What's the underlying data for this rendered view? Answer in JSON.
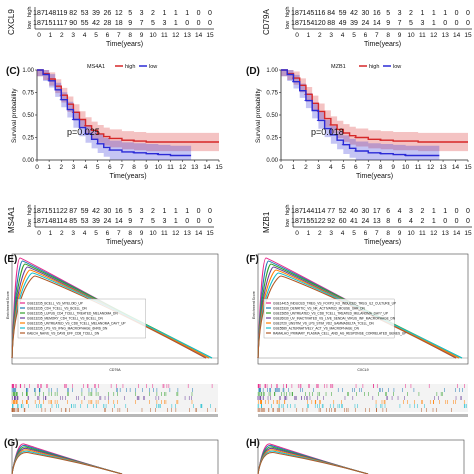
{
  "risk_tables": [
    {
      "gene": "CXCL9",
      "high_label": "high",
      "low_label": "low",
      "high": [
        "187",
        "148",
        "119",
        "82",
        "53",
        "39",
        "26",
        "12",
        "5",
        "3",
        "2",
        "1",
        "1",
        "1",
        "0",
        "0"
      ],
      "low": [
        "187",
        "151",
        "117",
        "90",
        "55",
        "42",
        "28",
        "18",
        "9",
        "7",
        "5",
        "3",
        "1",
        "0",
        "0",
        "0"
      ],
      "xlabel": "Time(years)",
      "ticks": [
        "0",
        "1",
        "2",
        "3",
        "4",
        "5",
        "6",
        "7",
        "8",
        "9",
        "10",
        "11",
        "12",
        "13",
        "14",
        "15"
      ]
    },
    {
      "gene": "CD79A",
      "high_label": "high",
      "low_label": "low",
      "high": [
        "187",
        "145",
        "116",
        "84",
        "59",
        "42",
        "30",
        "16",
        "5",
        "3",
        "2",
        "1",
        "1",
        "1",
        "0",
        "0"
      ],
      "low": [
        "187",
        "154",
        "120",
        "88",
        "49",
        "39",
        "24",
        "14",
        "9",
        "7",
        "5",
        "3",
        "1",
        "0",
        "0",
        "0"
      ],
      "xlabel": "Time(years)",
      "ticks": [
        "0",
        "1",
        "2",
        "3",
        "4",
        "5",
        "6",
        "7",
        "8",
        "9",
        "10",
        "11",
        "12",
        "13",
        "14",
        "15"
      ]
    },
    {
      "gene": "MS4A1",
      "high_label": "high",
      "low_label": "low",
      "high": [
        "187",
        "151",
        "122",
        "87",
        "59",
        "42",
        "30",
        "16",
        "5",
        "3",
        "2",
        "1",
        "1",
        "1",
        "0",
        "0"
      ],
      "low": [
        "187",
        "148",
        "114",
        "85",
        "53",
        "39",
        "24",
        "14",
        "9",
        "7",
        "5",
        "3",
        "1",
        "0",
        "0",
        "0"
      ],
      "xlabel": "Time(years)",
      "ticks": [
        "0",
        "1",
        "2",
        "3",
        "4",
        "5",
        "6",
        "7",
        "8",
        "9",
        "10",
        "11",
        "12",
        "13",
        "14",
        "15"
      ]
    },
    {
      "gene": "MZB1",
      "high_label": "high",
      "low_label": "low",
      "high": [
        "187",
        "144",
        "114",
        "77",
        "52",
        "40",
        "30",
        "17",
        "6",
        "4",
        "3",
        "2",
        "1",
        "1",
        "0",
        "0"
      ],
      "low": [
        "187",
        "155",
        "122",
        "92",
        "60",
        "41",
        "24",
        "13",
        "8",
        "6",
        "4",
        "2",
        "1",
        "0",
        "0",
        "0"
      ],
      "xlabel": "Time(years)",
      "ticks": [
        "0",
        "1",
        "2",
        "3",
        "4",
        "5",
        "6",
        "7",
        "8",
        "9",
        "10",
        "11",
        "12",
        "13",
        "14",
        "15"
      ]
    }
  ],
  "chart_data": [
    {
      "type": "line",
      "panel": "(C)",
      "gene": "MS4A1",
      "legend": [
        "high",
        "low"
      ],
      "legend_title": "MS4A1",
      "pvalue": "p=0.025",
      "xlabel": "Time(years)",
      "ylabel": "Survival probability",
      "xlim": [
        0,
        15
      ],
      "ylim": [
        0,
        1
      ],
      "yticks": [
        "0.00",
        "0.25",
        "0.50",
        "0.75",
        "1.00"
      ],
      "xticks": [
        "0",
        "1",
        "2",
        "3",
        "4",
        "5",
        "6",
        "7",
        "8",
        "9",
        "10",
        "11",
        "12",
        "13",
        "14",
        "15"
      ],
      "series": [
        {
          "name": "high",
          "color": "#d62728",
          "x": [
            0,
            0.5,
            1,
            1.5,
            2,
            2.5,
            3,
            3.5,
            4,
            4.5,
            5,
            5.5,
            6,
            7,
            8,
            9,
            10,
            11,
            12,
            13,
            14,
            15
          ],
          "y": [
            1,
            0.96,
            0.9,
            0.82,
            0.72,
            0.62,
            0.53,
            0.45,
            0.38,
            0.33,
            0.29,
            0.26,
            0.24,
            0.22,
            0.21,
            0.2,
            0.2,
            0.2,
            0.2,
            0.2,
            0.2,
            0.2
          ]
        },
        {
          "name": "low",
          "color": "#2a2ad6",
          "x": [
            0,
            0.5,
            1,
            1.5,
            2,
            2.5,
            3,
            3.5,
            4,
            4.5,
            5,
            5.5,
            6,
            7,
            8,
            9,
            10,
            11,
            12,
            12.7
          ],
          "y": [
            1,
            0.95,
            0.88,
            0.78,
            0.67,
            0.56,
            0.45,
            0.36,
            0.29,
            0.23,
            0.18,
            0.14,
            0.11,
            0.09,
            0.08,
            0.07,
            0.06,
            0.05,
            0.05,
            0.05
          ]
        }
      ]
    },
    {
      "type": "line",
      "panel": "(D)",
      "gene": "MZB1",
      "legend": [
        "high",
        "low"
      ],
      "legend_title": "MZB1",
      "pvalue": "p=0.018",
      "xlabel": "Time(years)",
      "ylabel": "Survival probability",
      "xlim": [
        0,
        15
      ],
      "ylim": [
        0,
        1
      ],
      "yticks": [
        "0.00",
        "0.25",
        "0.50",
        "0.75",
        "1.00"
      ],
      "xticks": [
        "0",
        "1",
        "2",
        "3",
        "4",
        "5",
        "6",
        "7",
        "8",
        "9",
        "10",
        "11",
        "12",
        "13",
        "14",
        "15"
      ],
      "series": [
        {
          "name": "high",
          "color": "#d62728",
          "x": [
            0,
            0.5,
            1,
            1.5,
            2,
            2.5,
            3,
            3.5,
            4,
            4.5,
            5,
            5.5,
            6,
            7,
            8,
            9,
            10,
            11,
            12,
            13,
            14,
            15
          ],
          "y": [
            1,
            0.96,
            0.91,
            0.83,
            0.73,
            0.63,
            0.54,
            0.46,
            0.39,
            0.34,
            0.3,
            0.27,
            0.25,
            0.23,
            0.22,
            0.21,
            0.21,
            0.2,
            0.2,
            0.2,
            0.2,
            0.2
          ]
        },
        {
          "name": "low",
          "color": "#2a2ad6",
          "x": [
            0,
            0.5,
            1,
            1.5,
            2,
            2.5,
            3,
            3.5,
            4,
            4.5,
            5,
            5.5,
            6,
            7,
            8,
            9,
            10,
            11,
            12,
            12.7
          ],
          "y": [
            1,
            0.95,
            0.87,
            0.77,
            0.66,
            0.55,
            0.44,
            0.35,
            0.28,
            0.22,
            0.17,
            0.13,
            0.1,
            0.08,
            0.07,
            0.06,
            0.05,
            0.05,
            0.05,
            0.05
          ]
        }
      ]
    }
  ],
  "gsea_panels": [
    {
      "label": "(E)",
      "xlabel": "CD79A",
      "ylabel": "Enrichment Score",
      "legend": [
        "GSE13235_BCELL_VS_MYELOID_UP",
        "GSE13235_CD4_TCELL_VS_BCELL_DN",
        "GSE13235_LUPUS_CD4_TCELL_TREATED_MELANOMA_DN",
        "GSE13235_MEMORY_CD4_TCELL_VS_BCELL_DN",
        "GSE13235_UNTREATED_VS_CD8_TCELL_MELANOMA_DAY7_UP",
        "GSE13235_LPS_VS_IFNG_MACROPHAGE_6HRS_DN",
        "KAECH_NAIVE_VS_DAY8_EFF_CD8_TCELL_DN"
      ],
      "colors": [
        "#e7298a",
        "#1f78b4",
        "#33a02c",
        "#6a3d9a",
        "#ff7f00",
        "#17becf",
        "#b15928"
      ]
    },
    {
      "label": "(F)",
      "xlabel": "CXCL9",
      "ylabel": "Enrichment Score",
      "legend": [
        "GSE14415_INDUCED_TREG_VS_FOXP3_KO_INDUCED_TREG_IL2_CULTURE_UP",
        "GSE15330_DENRITIC_VS_NK_ACTIVATED_MOUSE_6HR_DN",
        "GSE15659_UNTREATED_VS_CD8_TCELL_TREATED_MELANOMA_DAY7_UP",
        "GSE26030_UV_INACTIVATED_VS_LIVE_SENDAI_VIRUS_INF_MACROPHAGE_DN",
        "GSE3720_UNSTIM_VS_LPS_STIM_VD2_GAMMADELTA_TCELL_DN",
        "GSE5589_ALTERNATIVELY_ACT_VS_MACROPHAGE_DN",
        "RAMALHO_PRIMARY_PLASMA_CELL_AND_AG_RESPONSE_CORRELATED_GENES_UP"
      ],
      "colors": [
        "#e7298a",
        "#1f78b4",
        "#33a02c",
        "#6a3d9a",
        "#ff7f00",
        "#17becf",
        "#b15928"
      ]
    },
    {
      "label": "(G)"
    },
    {
      "label": "(H)"
    }
  ]
}
